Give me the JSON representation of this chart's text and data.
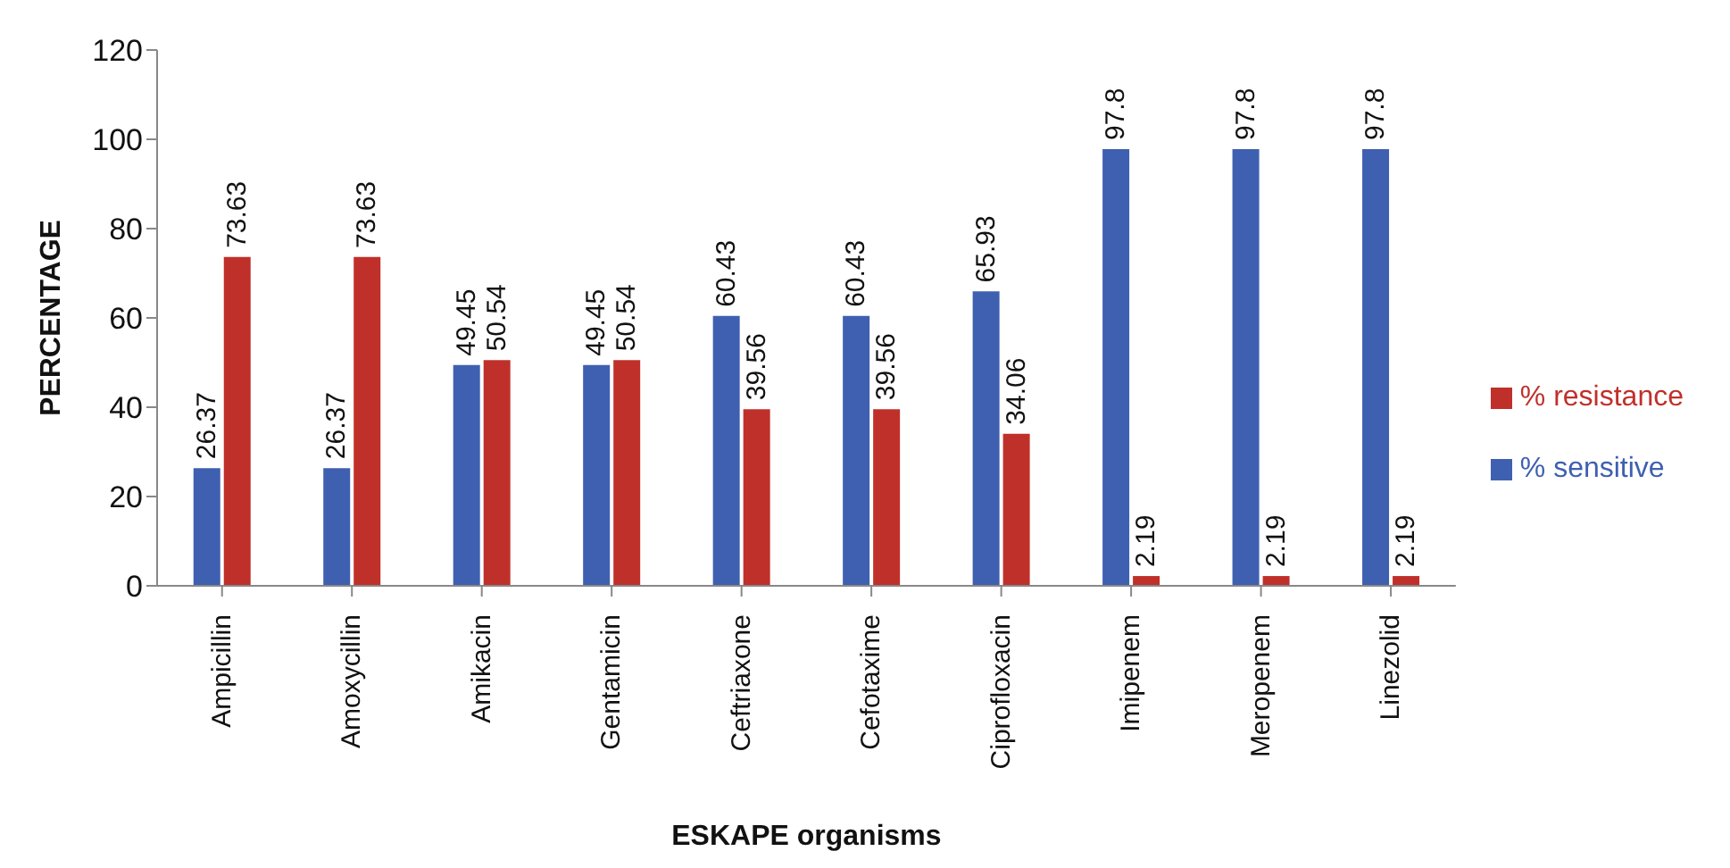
{
  "chart_data": {
    "type": "bar",
    "xlabel": "ESKAPE organisms",
    "ylabel": "PERCENTAGE",
    "categories": [
      "Ampicillin",
      "Amoxycillin",
      "Amikacin",
      "Gentamicin",
      "Ceftriaxone",
      "Cefotaxime",
      "Ciprofloxacin",
      "Imipenem",
      "Meropenem",
      "Linezolid"
    ],
    "series": [
      {
        "name": "% sensitive",
        "color": "#3f60b0",
        "values": [
          26.37,
          26.37,
          49.45,
          49.45,
          60.43,
          60.43,
          65.93,
          97.8,
          97.8,
          97.8
        ]
      },
      {
        "name": "% resistance",
        "color": "#c0302a",
        "values": [
          73.63,
          73.63,
          50.54,
          50.54,
          39.56,
          39.56,
          34.06,
          2.19,
          2.19,
          2.19
        ]
      }
    ],
    "ylim": [
      0,
      120
    ],
    "yticks": [
      0,
      20,
      40,
      60,
      80,
      100,
      120
    ],
    "grid": false,
    "legend": "right",
    "data_labels": true
  }
}
